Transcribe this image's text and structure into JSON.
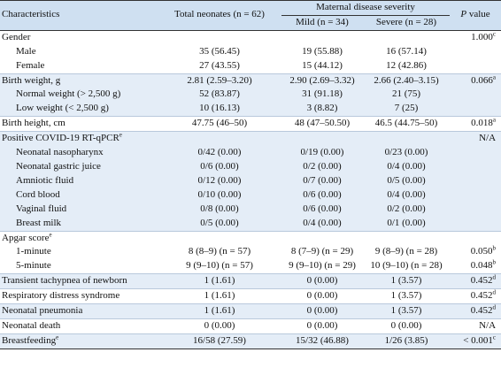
{
  "header": {
    "characteristics": "Characteristics",
    "total": "Total neonates (n = 62)",
    "group": "Maternal disease severity",
    "mild": "Mild (n = 34)",
    "severe": "Severe (n = 28)",
    "p_italic": "P",
    "p_rest": "value"
  },
  "rows": [
    {
      "label": "Gender",
      "total": "",
      "mild": "",
      "severe": "",
      "p": "1.000",
      "sup": "c",
      "indent": false,
      "shaded": false,
      "sep": false
    },
    {
      "label": "Male",
      "total": "35 (56.45)",
      "mild": "19 (55.88)",
      "severe": "16 (57.14)",
      "p": "",
      "sup": "",
      "indent": true,
      "shaded": false,
      "sep": false
    },
    {
      "label": "Female",
      "total": "27 (43.55)",
      "mild": "15 (44.12)",
      "severe": "12 (42.86)",
      "p": "",
      "sup": "",
      "indent": true,
      "shaded": false,
      "sep": false
    },
    {
      "label": "Birth weight, g",
      "total": "2.81 (2.59–3.20)",
      "mild": "2.90 (2.69–3.32)",
      "severe": "2.66 (2.40–3.15)",
      "p": "0.066",
      "sup": "a",
      "indent": false,
      "shaded": true,
      "sep": true
    },
    {
      "label": "Normal weight (> 2,500 g)",
      "total": "52 (83.87)",
      "mild": "31 (91.18)",
      "severe": "21 (75)",
      "p": "",
      "sup": "",
      "indent": true,
      "shaded": true,
      "sep": false
    },
    {
      "label": "Low weight (< 2,500 g)",
      "total": "10 (16.13)",
      "mild": "3 (8.82)",
      "severe": "7 (25)",
      "p": "",
      "sup": "",
      "indent": true,
      "shaded": true,
      "sep": false
    },
    {
      "label": "Birth height, cm",
      "total": "47.75 (46–50)",
      "mild": "48 (47–50.50)",
      "severe": "46.5 (44.75–50)",
      "p": "0.018",
      "sup": "a",
      "indent": false,
      "shaded": false,
      "sep": true
    },
    {
      "label": "Positive COVID-19 RT-qPCR",
      "label_sup": "e",
      "total": "",
      "mild": "",
      "severe": "",
      "p": "N/A",
      "sup": "",
      "indent": false,
      "shaded": true,
      "sep": true
    },
    {
      "label": "Neonatal nasopharynx",
      "total": "0/42 (0.00)",
      "mild": "0/19 (0.00)",
      "severe": "0/23 (0.00)",
      "p": "",
      "sup": "",
      "indent": true,
      "shaded": true,
      "sep": false
    },
    {
      "label": "Neonatal gastric juice",
      "total": "0/6 (0.00)",
      "mild": "0/2 (0.00)",
      "severe": "0/4 (0.00)",
      "p": "",
      "sup": "",
      "indent": true,
      "shaded": true,
      "sep": false
    },
    {
      "label": "Amniotic fluid",
      "total": "0/12 (0.00)",
      "mild": "0/7 (0.00)",
      "severe": "0/5 (0.00)",
      "p": "",
      "sup": "",
      "indent": true,
      "shaded": true,
      "sep": false
    },
    {
      "label": "Cord blood",
      "total": "0/10 (0.00)",
      "mild": "0/6 (0.00)",
      "severe": "0/4 (0.00)",
      "p": "",
      "sup": "",
      "indent": true,
      "shaded": true,
      "sep": false
    },
    {
      "label": "Vaginal fluid",
      "total": "0/8 (0.00)",
      "mild": "0/6 (0.00)",
      "severe": "0/2 (0.00)",
      "p": "",
      "sup": "",
      "indent": true,
      "shaded": true,
      "sep": false
    },
    {
      "label": "Breast milk",
      "total": "0/5 (0.00)",
      "mild": "0/4 (0.00)",
      "severe": "0/1 (0.00)",
      "p": "",
      "sup": "",
      "indent": true,
      "shaded": true,
      "sep": false
    },
    {
      "label": "Apgar score",
      "label_sup": "e",
      "total": "",
      "mild": "",
      "severe": "",
      "p": "",
      "sup": "",
      "indent": false,
      "shaded": false,
      "sep": true
    },
    {
      "label": "1-minute",
      "total": "8 (8–9) (n = 57)",
      "mild": "8 (7–9) (n = 29)",
      "severe": "9 (8–9) (n = 28)",
      "p": "0.050",
      "sup": "b",
      "indent": true,
      "shaded": false,
      "sep": false
    },
    {
      "label": "5-minute",
      "total": "9 (9–10) (n = 57)",
      "mild": "9 (9–10) (n = 29)",
      "severe": "10 (9–10) (n = 28)",
      "p": "0.048",
      "sup": "b",
      "indent": true,
      "shaded": false,
      "sep": false
    },
    {
      "label": "Transient tachypnea of newborn",
      "total": "1 (1.61)",
      "mild": "0 (0.00)",
      "severe": "1 (3.57)",
      "p": "0.452",
      "sup": "d",
      "indent": false,
      "shaded": true,
      "sep": true
    },
    {
      "label": "Respiratory distress syndrome",
      "total": "1 (1.61)",
      "mild": "0 (0.00)",
      "severe": "1 (3.57)",
      "p": "0.452",
      "sup": "d",
      "indent": false,
      "shaded": false,
      "sep": true
    },
    {
      "label": "Neonatal pneumonia",
      "total": "1 (1.61)",
      "mild": "0 (0.00)",
      "severe": "1 (3.57)",
      "p": "0.452",
      "sup": "d",
      "indent": false,
      "shaded": true,
      "sep": true
    },
    {
      "label": "Neonatal death",
      "total": "0 (0.00)",
      "mild": "0 (0.00)",
      "severe": "0 (0.00)",
      "p": "N/A",
      "sup": "",
      "indent": false,
      "shaded": false,
      "sep": true
    },
    {
      "label": "Breastfeeding",
      "label_sup": "e",
      "total": "16/58 (27.59)",
      "mild": "15/32 (46.88)",
      "severe": "1/26 (3.85)",
      "p": "< 0.001",
      "sup": "c",
      "indent": false,
      "shaded": true,
      "sep": true
    }
  ],
  "colors": {
    "header_bg": "#cfe0f1",
    "shaded_bg": "#e4edf7"
  }
}
